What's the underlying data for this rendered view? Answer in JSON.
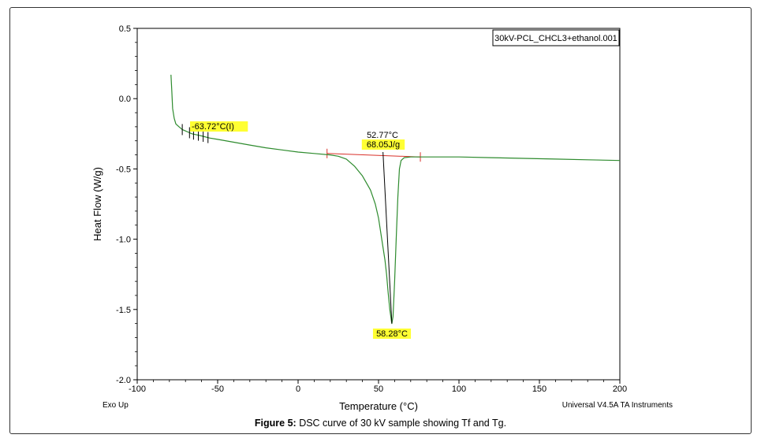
{
  "chart_data": {
    "type": "line",
    "title": "",
    "xlabel": "Temperature (°C)",
    "ylabel": "Heat Flow (W/g)",
    "xlim": [
      -100,
      200
    ],
    "ylim": [
      -2.0,
      0.5
    ],
    "x_ticks": [
      "-100",
      "-50",
      "0",
      "50",
      "100",
      "150",
      "200"
    ],
    "y_ticks": [
      "0.5",
      "0.0",
      "-0.5",
      "-1.0",
      "-1.5",
      "-2.0"
    ],
    "grid": false,
    "legend": "30kV-PCL_CHCL3+ethanol.001",
    "legend_position": "top-right",
    "series": [
      {
        "color": "#2e8b2e",
        "x": [
          -79,
          -78.5,
          -78,
          -77,
          -76,
          -74,
          -72,
          -70,
          -68,
          -66,
          -64,
          -60,
          -55,
          -50,
          -40,
          -30,
          -20,
          -10,
          0,
          10,
          20,
          25,
          30,
          35,
          40,
          45,
          48,
          50,
          52,
          54,
          55,
          56,
          57,
          58,
          58.3,
          59,
          60,
          61,
          62,
          63,
          64,
          66,
          70,
          80,
          100,
          120,
          140,
          160,
          180,
          200
        ],
        "y": [
          0.17,
          0.05,
          -0.07,
          -0.14,
          -0.18,
          -0.2,
          -0.22,
          -0.23,
          -0.24,
          -0.25,
          -0.255,
          -0.265,
          -0.28,
          -0.29,
          -0.31,
          -0.33,
          -0.35,
          -0.365,
          -0.38,
          -0.39,
          -0.4,
          -0.41,
          -0.43,
          -0.48,
          -0.55,
          -0.65,
          -0.75,
          -0.85,
          -1.0,
          -1.15,
          -1.25,
          -1.38,
          -1.5,
          -1.58,
          -1.6,
          -1.55,
          -1.3,
          -1.0,
          -0.7,
          -0.5,
          -0.44,
          -0.42,
          -0.415,
          -0.415,
          -0.415,
          -0.42,
          -0.425,
          -0.43,
          -0.435,
          -0.44
        ]
      }
    ],
    "baseline": {
      "color": "#d9302a",
      "x": [
        18,
        76
      ],
      "y": [
        -0.39,
        -0.415
      ]
    },
    "integration_line": {
      "x": [
        52.77,
        58.28
      ],
      "y": [
        -0.38,
        -1.6
      ]
    },
    "tg_tick_marks_x": [
      -72,
      -67.5,
      -65,
      -62,
      -59,
      -56
    ],
    "annotations": {
      "tg": {
        "text": "-63.72°C(I)",
        "x": -63.72,
        "y": -0.24
      },
      "onset": {
        "text": "52.77°C"
      },
      "enthalpy": {
        "text": "68.05J/g"
      },
      "peak": {
        "text": "58.28°C",
        "x": 58.28,
        "y": -1.6
      }
    }
  },
  "footer": {
    "left": "Exo Up",
    "right": "Universal V4.5A TA Instruments"
  },
  "caption": {
    "label": "Figure 5:",
    "text": " DSC curve of 30 kV sample showing Tf and Tg."
  }
}
